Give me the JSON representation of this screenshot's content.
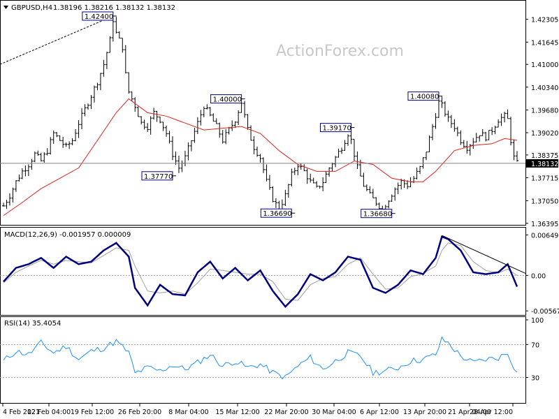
{
  "header": {
    "symbol": "GBPUSD,H4",
    "ohlc": "1.38196 1.38216 1.38132 1.38132"
  },
  "watermark": "ActionForex.com",
  "colors": {
    "bars": "#000000",
    "ma": "#e02020",
    "macd": "#000080",
    "signal": "#a0a0a0",
    "rsi": "#1e90ff",
    "annotation_border": "#000080"
  },
  "chart_data": [
    {
      "type": "ohlc",
      "title": "GBPUSD,H4",
      "ylim": [
        1.3639,
        1.424
      ],
      "yticks": [
        "1.42305",
        "1.41645",
        "1.41000",
        "1.40340",
        "1.39680",
        "1.39020",
        "1.38375",
        "1.37715",
        "1.37050",
        "1.36395"
      ],
      "current_price": "1.38132",
      "x_ticks": [
        "4 Feb 2021",
        "12 Feb 04:00",
        "19 Feb 12:00",
        "26 Feb 20:00",
        "8 Mar 04:00",
        "15 Mar 12:00",
        "22 Mar 20:00",
        "30 Mar 04:00",
        "6 Apr 12:00",
        "13 Apr 20:00",
        "21 Apr 04:00",
        "28 Apr 12:00"
      ],
      "close_path": [
        [
          0,
          1.369
        ],
        [
          2,
          1.372
        ],
        [
          4,
          1.376
        ],
        [
          6,
          1.379
        ],
        [
          8,
          1.381
        ],
        [
          10,
          1.384
        ],
        [
          12,
          1.382
        ],
        [
          14,
          1.385
        ],
        [
          16,
          1.39
        ],
        [
          18,
          1.388
        ],
        [
          20,
          1.386
        ],
        [
          22,
          1.388
        ],
        [
          24,
          1.393
        ],
        [
          26,
          1.397
        ],
        [
          28,
          1.401
        ],
        [
          30,
          1.405
        ],
        [
          32,
          1.41
        ],
        [
          34,
          1.417
        ],
        [
          35,
          1.423
        ],
        [
          36,
          1.419
        ],
        [
          38,
          1.415
        ],
        [
          39,
          1.407
        ],
        [
          40,
          1.402
        ],
        [
          42,
          1.398
        ],
        [
          44,
          1.393
        ],
        [
          46,
          1.392
        ],
        [
          48,
          1.396
        ],
        [
          50,
          1.394
        ],
        [
          52,
          1.39
        ],
        [
          54,
          1.384
        ],
        [
          56,
          1.38
        ],
        [
          58,
          1.383
        ],
        [
          60,
          1.388
        ],
        [
          62,
          1.393
        ],
        [
          64,
          1.398
        ],
        [
          66,
          1.395
        ],
        [
          68,
          1.392
        ],
        [
          70,
          1.388
        ],
        [
          72,
          1.391
        ],
        [
          74,
          1.394
        ],
        [
          76,
          1.399
        ],
        [
          78,
          1.391
        ],
        [
          80,
          1.386
        ],
        [
          82,
          1.383
        ],
        [
          84,
          1.376
        ],
        [
          86,
          1.371
        ],
        [
          88,
          1.368
        ],
        [
          90,
          1.372
        ],
        [
          92,
          1.378
        ],
        [
          94,
          1.381
        ],
        [
          96,
          1.379
        ],
        [
          98,
          1.376
        ],
        [
          100,
          1.374
        ],
        [
          102,
          1.376
        ],
        [
          104,
          1.38
        ],
        [
          106,
          1.383
        ],
        [
          108,
          1.386
        ],
        [
          110,
          1.39
        ],
        [
          111,
          1.388
        ],
        [
          113,
          1.38
        ],
        [
          115,
          1.375
        ],
        [
          117,
          1.372
        ],
        [
          119,
          1.37
        ],
        [
          121,
          1.368
        ],
        [
          123,
          1.371
        ],
        [
          125,
          1.374
        ],
        [
          127,
          1.376
        ],
        [
          129,
          1.375
        ],
        [
          131,
          1.377
        ],
        [
          133,
          1.38
        ],
        [
          135,
          1.385
        ],
        [
          137,
          1.392
        ],
        [
          139,
          1.399
        ],
        [
          140,
          1.398
        ],
        [
          142,
          1.394
        ],
        [
          144,
          1.392
        ],
        [
          146,
          1.388
        ],
        [
          148,
          1.386
        ],
        [
          150,
          1.388
        ],
        [
          152,
          1.39
        ],
        [
          154,
          1.389
        ],
        [
          156,
          1.391
        ],
        [
          158,
          1.394
        ],
        [
          160,
          1.395
        ],
        [
          161,
          1.394
        ],
        [
          162,
          1.388
        ],
        [
          163,
          1.383
        ],
        [
          164,
          1.3813
        ]
      ],
      "ma_path": [
        [
          0,
          1.3662
        ],
        [
          6,
          1.37
        ],
        [
          12,
          1.374
        ],
        [
          18,
          1.377
        ],
        [
          24,
          1.38
        ],
        [
          30,
          1.388
        ],
        [
          36,
          1.396
        ],
        [
          40,
          1.4
        ],
        [
          46,
          1.396
        ],
        [
          52,
          1.395
        ],
        [
          58,
          1.393
        ],
        [
          64,
          1.391
        ],
        [
          70,
          1.3915
        ],
        [
          76,
          1.392
        ],
        [
          82,
          1.39
        ],
        [
          88,
          1.385
        ],
        [
          94,
          1.381
        ],
        [
          100,
          1.379
        ],
        [
          106,
          1.379
        ],
        [
          112,
          1.382
        ],
        [
          118,
          1.381
        ],
        [
          124,
          1.377
        ],
        [
          130,
          1.376
        ],
        [
          134,
          1.376
        ],
        [
          138,
          1.379
        ],
        [
          144,
          1.385
        ],
        [
          150,
          1.3865
        ],
        [
          156,
          1.387
        ],
        [
          160,
          1.3885
        ],
        [
          164,
          1.388
        ]
      ],
      "annotations": [
        {
          "label": "1.42400",
          "index": 35,
          "value": 1.424,
          "box": "left"
        },
        {
          "label": "1.40000",
          "index": 76,
          "value": 1.4,
          "box": "left"
        },
        {
          "label": "1.39170",
          "index": 111,
          "value": 1.3917,
          "box": "left"
        },
        {
          "label": "1.40080",
          "index": 139,
          "value": 1.4008,
          "box": "left"
        },
        {
          "label": "1.37770",
          "index": 54,
          "value": 1.3777,
          "box": "left"
        },
        {
          "label": "1.36690",
          "index": 92,
          "value": 1.3669,
          "box": "left"
        },
        {
          "label": "1.36680",
          "index": 124,
          "value": 1.3668,
          "box": "left"
        }
      ]
    },
    {
      "type": "line",
      "title": "MACD(12,26,9) -0.001957 0.000009",
      "ylim": [
        -0.006,
        0.0072
      ],
      "yticks": [
        "0.00649",
        "0.00",
        "-0.005679"
      ],
      "series": [
        {
          "name": "MACD",
          "points": [
            [
              0,
              -0.001
            ],
            [
              4,
              0.0012
            ],
            [
              8,
              0.0018
            ],
            [
              12,
              0.0028
            ],
            [
              16,
              0.0012
            ],
            [
              20,
              0.003
            ],
            [
              24,
              0.0018
            ],
            [
              28,
              0.0022
            ],
            [
              32,
              0.004
            ],
            [
              36,
              0.0052
            ],
            [
              40,
              0.003
            ],
            [
              42,
              -0.002
            ],
            [
              46,
              -0.0048
            ],
            [
              50,
              -0.0015
            ],
            [
              54,
              -0.003
            ],
            [
              58,
              -0.0032
            ],
            [
              62,
              0.0005
            ],
            [
              66,
              0.0022
            ],
            [
              70,
              -0.0005
            ],
            [
              74,
              0.0012
            ],
            [
              78,
              -0.0008
            ],
            [
              82,
              0.0008
            ],
            [
              86,
              -0.0025
            ],
            [
              90,
              -0.005
            ],
            [
              94,
              -0.003
            ],
            [
              98,
              0.0002
            ],
            [
              102,
              -0.0008
            ],
            [
              106,
              0.0005
            ],
            [
              110,
              0.003
            ],
            [
              114,
              0.0025
            ],
            [
              118,
              -0.002
            ],
            [
              122,
              -0.0028
            ],
            [
              126,
              -0.0015
            ],
            [
              130,
              0.0008
            ],
            [
              134,
              0.0002
            ],
            [
              138,
              0.0028
            ],
            [
              140,
              0.0062
            ],
            [
              142,
              0.0058
            ],
            [
              146,
              0.004
            ],
            [
              150,
              0.0005
            ],
            [
              154,
              0.0002
            ],
            [
              158,
              0.0005
            ],
            [
              161,
              0.0018
            ],
            [
              164,
              -0.0018
            ]
          ]
        },
        {
          "name": "Signal",
          "points": [
            [
              0,
              -0.0012
            ],
            [
              4,
              0.0005
            ],
            [
              8,
              0.0015
            ],
            [
              12,
              0.0024
            ],
            [
              16,
              0.0018
            ],
            [
              20,
              0.0024
            ],
            [
              24,
              0.0022
            ],
            [
              28,
              0.002
            ],
            [
              32,
              0.0032
            ],
            [
              36,
              0.0044
            ],
            [
              40,
              0.004
            ],
            [
              42,
              0.0015
            ],
            [
              46,
              -0.0025
            ],
            [
              50,
              -0.0028
            ],
            [
              54,
              -0.0025
            ],
            [
              58,
              -0.003
            ],
            [
              62,
              -0.0012
            ],
            [
              66,
              0.001
            ],
            [
              70,
              0.0008
            ],
            [
              74,
              0.0005
            ],
            [
              78,
              0.0002
            ],
            [
              82,
              0.0002
            ],
            [
              86,
              -0.001
            ],
            [
              90,
              -0.0038
            ],
            [
              94,
              -0.004
            ],
            [
              98,
              -0.0015
            ],
            [
              102,
              -0.0005
            ],
            [
              106,
              -0.0002
            ],
            [
              110,
              0.0018
            ],
            [
              114,
              0.0028
            ],
            [
              118,
              0.0002
            ],
            [
              122,
              -0.0022
            ],
            [
              126,
              -0.002
            ],
            [
              130,
              -0.0002
            ],
            [
              134,
              0.0003
            ],
            [
              138,
              0.0015
            ],
            [
              140,
              0.004
            ],
            [
              142,
              0.0052
            ],
            [
              146,
              0.0048
            ],
            [
              150,
              0.0022
            ],
            [
              154,
              0.0008
            ],
            [
              158,
              0.0004
            ],
            [
              161,
              0.001
            ],
            [
              164,
              0.0
            ]
          ]
        }
      ],
      "trendline": [
        [
          140,
          0.0064
        ],
        [
          164,
          0.001
        ]
      ]
    },
    {
      "type": "line",
      "title": "RSI(14) 35.4054",
      "ylim": [
        0,
        100
      ],
      "yticks": [
        "100",
        "70",
        "30"
      ],
      "levels": [
        70,
        30
      ],
      "series": [
        {
          "name": "RSI",
          "points": [
            [
              0,
              50
            ],
            [
              4,
              62
            ],
            [
              8,
              58
            ],
            [
              12,
              72
            ],
            [
              16,
              60
            ],
            [
              20,
              68
            ],
            [
              24,
              52
            ],
            [
              28,
              62
            ],
            [
              32,
              66
            ],
            [
              36,
              74
            ],
            [
              40,
              60
            ],
            [
              42,
              35
            ],
            [
              46,
              42
            ],
            [
              50,
              38
            ],
            [
              54,
              45
            ],
            [
              58,
              40
            ],
            [
              62,
              48
            ],
            [
              66,
              58
            ],
            [
              70,
              44
            ],
            [
              74,
              50
            ],
            [
              78,
              42
            ],
            [
              82,
              46
            ],
            [
              86,
              36
            ],
            [
              90,
              30
            ],
            [
              94,
              44
            ],
            [
              98,
              54
            ],
            [
              102,
              40
            ],
            [
              106,
              50
            ],
            [
              110,
              60
            ],
            [
              114,
              56
            ],
            [
              118,
              36
            ],
            [
              122,
              38
            ],
            [
              126,
              42
            ],
            [
              130,
              50
            ],
            [
              134,
              52
            ],
            [
              138,
              58
            ],
            [
              140,
              76
            ],
            [
              142,
              72
            ],
            [
              146,
              56
            ],
            [
              150,
              48
            ],
            [
              154,
              52
            ],
            [
              158,
              54
            ],
            [
              161,
              60
            ],
            [
              164,
              35
            ]
          ]
        }
      ]
    }
  ]
}
